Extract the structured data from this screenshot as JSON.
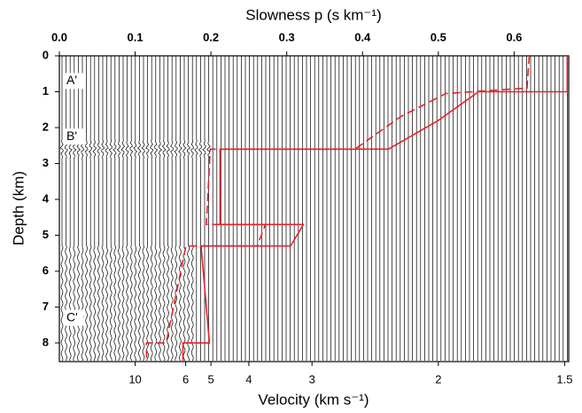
{
  "chart_data": {
    "type": "line",
    "xlabel": "Slowness p (s km⁻¹)",
    "ylabel": "Depth (km)",
    "x2label": "Velocity (km s⁻¹)",
    "xlim": [
      0,
      0.672
    ],
    "xticks": [
      {
        "value": 0,
        "label": "0.0"
      },
      0.1,
      0.2,
      0.3,
      0.4,
      0.5,
      0.6
    ],
    "x2scale": "reciprocal",
    "x2ticks": [
      10,
      6,
      5,
      4,
      3,
      2,
      1.5
    ],
    "ylim": [
      0,
      8.52
    ],
    "yticks": [
      0,
      1,
      2,
      3,
      4,
      5,
      6,
      7,
      8
    ],
    "annotations": [
      "A'",
      "B'",
      "C'"
    ],
    "series": [
      {
        "color": "#e8202a",
        "dash": false,
        "x": [
          0.67,
          0.67,
          0.553,
          0.5,
          0.434,
          0.212,
          0.212,
          0.322,
          0.305,
          0.187,
          0.198,
          0.163,
          0.163
        ],
        "y": [
          0,
          1.0,
          1.0,
          1.8,
          2.6,
          2.6,
          4.7,
          4.7,
          5.3,
          5.3,
          8.0,
          8.0,
          8.52
        ]
      },
      {
        "color": "#e8202a",
        "dash": true,
        "x": [
          0.62,
          0.617,
          0.51,
          0.45,
          0.39,
          0.199,
          0.194,
          0.272,
          0.261,
          0.167,
          0.141,
          0.115,
          0.115
        ],
        "y": [
          0,
          0.9,
          1.05,
          1.7,
          2.6,
          2.6,
          4.7,
          4.7,
          5.3,
          5.3,
          8.0,
          8.0,
          8.52
        ]
      }
    ]
  }
}
